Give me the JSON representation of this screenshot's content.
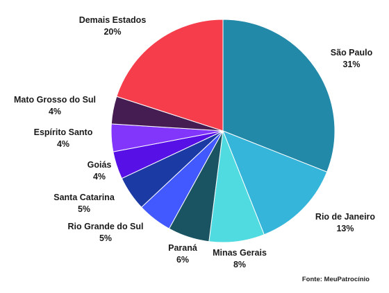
{
  "chart_data": {
    "type": "pie",
    "slices": [
      {
        "label": "São Paulo",
        "value": 31,
        "value_label": "31%",
        "color": "#2389a8"
      },
      {
        "label": "Rio de Janeiro",
        "value": 13,
        "value_label": "13%",
        "color": "#35b5da"
      },
      {
        "label": "Minas Gerais",
        "value": 8,
        "value_label": "8%",
        "color": "#50dbe0"
      },
      {
        "label": "Paraná",
        "value": 6,
        "value_label": "6%",
        "color": "#1a5462"
      },
      {
        "label": "Rio Grande do Sul",
        "value": 5,
        "value_label": "5%",
        "color": "#4159ff"
      },
      {
        "label": "Santa Catarina",
        "value": 5,
        "value_label": "5%",
        "color": "#1b3aa4"
      },
      {
        "label": "Goiás",
        "value": 4,
        "value_label": "4%",
        "color": "#5711e6"
      },
      {
        "label": "Espírito Santo",
        "value": 4,
        "value_label": "4%",
        "color": "#8236fb"
      },
      {
        "label": "Mato Grosso do Sul",
        "value": 4,
        "value_label": "4%",
        "color": "#461d52"
      },
      {
        "label": "Demais Estados",
        "value": 20,
        "value_label": "20%",
        "color": "#f53d4b"
      }
    ]
  },
  "source": "Fonte: MeuPatrocínio"
}
